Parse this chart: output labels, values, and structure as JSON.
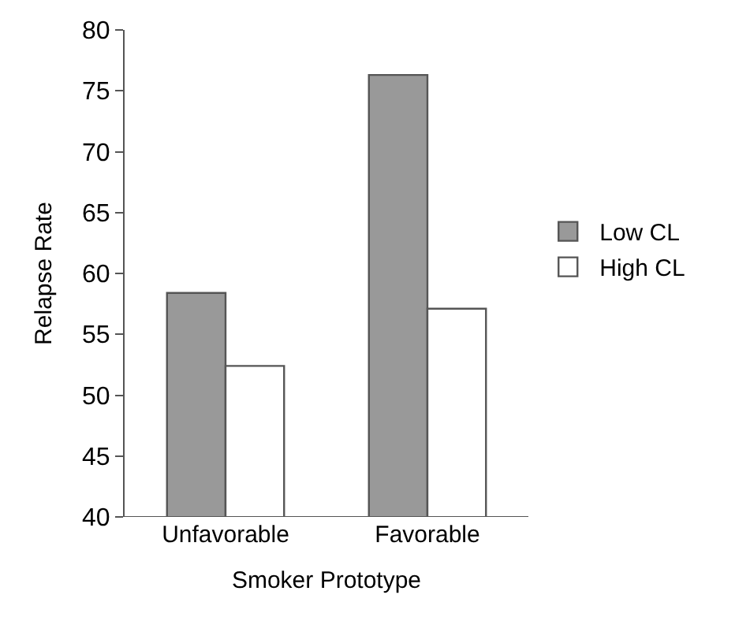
{
  "chart_data": {
    "type": "bar",
    "xlabel": "Smoker Prototype",
    "ylabel": "Relapse Rate",
    "categories": [
      "Unfavorable",
      "Favorable"
    ],
    "series": [
      {
        "name": "Low CL",
        "color": "#999999",
        "values": [
          58.4,
          76.3
        ]
      },
      {
        "name": "High CL",
        "color": "#ffffff",
        "values": [
          52.4,
          57.1
        ]
      }
    ],
    "ylim": [
      40,
      80
    ],
    "yticks": [
      40,
      45,
      50,
      55,
      60,
      65,
      70,
      75,
      80
    ],
    "legend": "right"
  }
}
